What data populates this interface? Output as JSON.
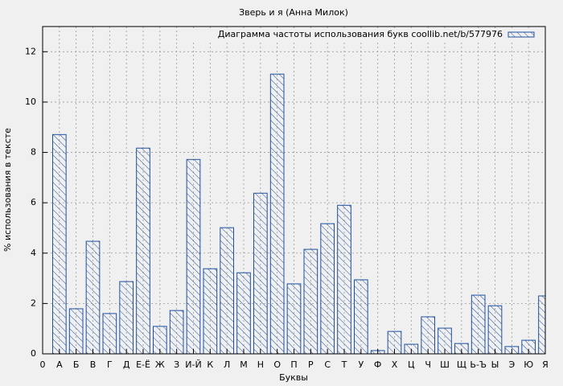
{
  "chart_data": {
    "type": "bar",
    "title": "Зверь и я (Анна Милок)",
    "xlabel": "Буквы",
    "ylabel": "% использования в тексте",
    "x": [
      1,
      2,
      3,
      4,
      5,
      6,
      7,
      8,
      9,
      10,
      11,
      12,
      13,
      14,
      15,
      16,
      17,
      18,
      19,
      20,
      21,
      22,
      23,
      24,
      25,
      26,
      27,
      28,
      29,
      30
    ],
    "series": [
      {
        "name": "Диаграмма частоты использования букв coollib.net/b/577976",
        "color": "#1f4fa0",
        "values": [
          8.71,
          1.79,
          4.47,
          1.6,
          2.87,
          8.17,
          1.09,
          1.72,
          7.72,
          3.38,
          5.01,
          3.22,
          6.38,
          11.11,
          2.78,
          4.15,
          5.17,
          5.9,
          2.94,
          0.13,
          0.89,
          0.38,
          1.47,
          1.02,
          0.41,
          2.33,
          1.91,
          0.29,
          0.54,
          2.3
        ]
      }
    ],
    "xlim": [
      0,
      30
    ],
    "xticks": [
      0,
      {
        "value": 1,
        "label": "А"
      },
      {
        "value": 2,
        "label": "Б"
      },
      {
        "value": 3,
        "label": "В"
      },
      {
        "value": 4,
        "label": "Г"
      },
      {
        "value": 5,
        "label": "Д"
      },
      {
        "value": 6,
        "label": "Е-Ё"
      },
      {
        "value": 7,
        "label": "Ж"
      },
      {
        "value": 8,
        "label": "З"
      },
      {
        "value": 9,
        "label": "И-Й"
      },
      {
        "value": 10,
        "label": "К"
      },
      {
        "value": 11,
        "label": "Л"
      },
      {
        "value": 12,
        "label": "М"
      },
      {
        "value": 13,
        "label": "Н"
      },
      {
        "value": 14,
        "label": "О"
      },
      {
        "value": 15,
        "label": "П"
      },
      {
        "value": 16,
        "label": "Р"
      },
      {
        "value": 17,
        "label": "С"
      },
      {
        "value": 18,
        "label": "Т"
      },
      {
        "value": 19,
        "label": "У"
      },
      {
        "value": 20,
        "label": "Ф"
      },
      {
        "value": 21,
        "label": "Х"
      },
      {
        "value": 22,
        "label": "Ц"
      },
      {
        "value": 23,
        "label": "Ч"
      },
      {
        "value": 24,
        "label": "Ш"
      },
      {
        "value": 25,
        "label": "Щ"
      },
      {
        "value": 26,
        "label": "Ь-Ъ"
      },
      {
        "value": 27,
        "label": "Ы"
      },
      {
        "value": 28,
        "label": "Э"
      },
      {
        "value": 29,
        "label": "Ю"
      },
      {
        "value": 30,
        "label": "Я"
      }
    ],
    "ylim": [
      0,
      13
    ],
    "yticks": [
      0,
      2,
      4,
      6,
      8,
      10,
      12
    ],
    "grid": true,
    "legend": "top-right"
  }
}
